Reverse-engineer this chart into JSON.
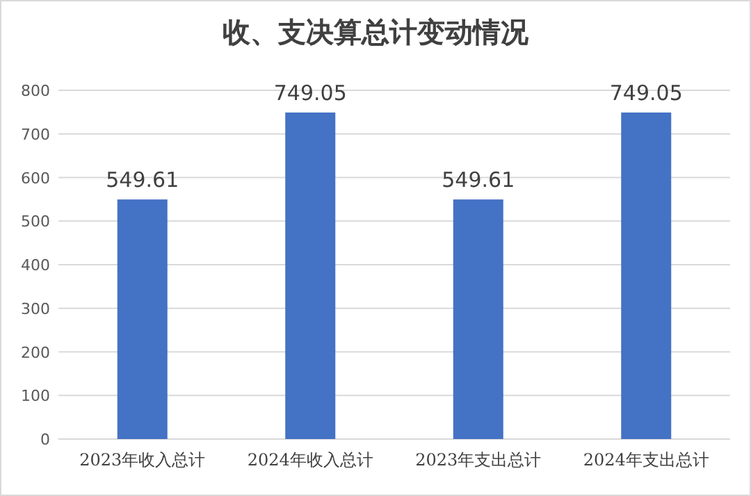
{
  "chart_data": {
    "type": "bar",
    "title": "收、支决算总计变动情况",
    "categories": [
      "2023年收入总计",
      "2024年收入总计",
      "2023年支出总计",
      "2024年支出总计"
    ],
    "values": [
      549.61,
      749.05,
      549.61,
      749.05
    ],
    "color": "#4472c4",
    "ylim": [
      0,
      800
    ],
    "yticks": [
      0,
      100,
      200,
      300,
      400,
      500,
      600,
      700,
      800
    ],
    "grid": "y",
    "data_labels": true
  }
}
